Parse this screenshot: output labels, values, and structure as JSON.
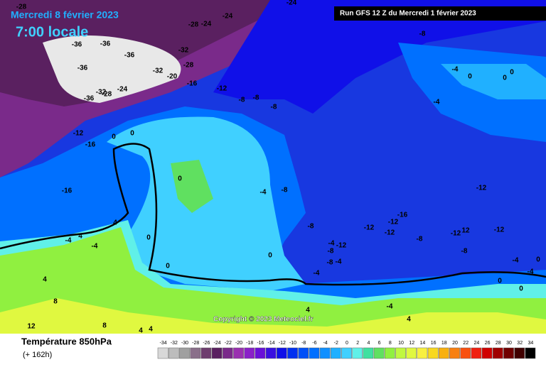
{
  "header": {
    "date": "Mercredi 8 février 2023",
    "time": "7:00 locale",
    "run": "Run GFS 12 Z du Mercredi 1 février 2023"
  },
  "footer": {
    "parameter": "Température 850hPa",
    "lead": "(+ 162h)",
    "copyright": "Copyright © 2023 Meteociel.fr"
  },
  "map": {
    "contour_labels": [
      -28,
      -24,
      -24,
      -28,
      -24,
      -36,
      -36,
      -36,
      -32,
      -36,
      -32,
      -28,
      -20,
      -36,
      -32,
      -28,
      -24,
      -16,
      -12,
      -8,
      -8,
      -8,
      -8,
      -4,
      0,
      0,
      0,
      -4,
      -12,
      -16,
      0,
      0,
      0,
      -4,
      -8,
      -12,
      -16,
      4,
      -4,
      4,
      -4,
      0,
      -8,
      -16,
      -12,
      -12,
      -12,
      -8,
      -12,
      12,
      -12,
      -4,
      -12,
      -8,
      0,
      -8,
      -4,
      -8,
      -4,
      0,
      -4,
      -4,
      0,
      4,
      8,
      12,
      8,
      4,
      4,
      4,
      -4,
      4,
      0,
      0
    ]
  },
  "legend": {
    "values": [
      -34,
      -32,
      -30,
      -28,
      -26,
      -24,
      -22,
      -20,
      -18,
      -16,
      -14,
      -12,
      -10,
      -8,
      -6,
      -4,
      -2,
      0,
      2,
      4,
      6,
      8,
      10,
      12,
      14,
      16,
      18,
      20,
      22,
      24,
      26,
      28,
      30,
      32,
      34
    ],
    "colors": [
      "#d8d8d8",
      "#bcbcbc",
      "#a0a0a0",
      "#8a6f8a",
      "#6e3e6e",
      "#5a2060",
      "#7a2a8a",
      "#9a30b0",
      "#8a20c8",
      "#6a10d8",
      "#3a10e0",
      "#1010e8",
      "#0030f0",
      "#0050f8",
      "#0070ff",
      "#1090ff",
      "#20b0ff",
      "#40d0ff",
      "#60f0e8",
      "#40e0a0",
      "#60e060",
      "#90f040",
      "#c0f840",
      "#e0f840",
      "#f8f040",
      "#f8d820",
      "#f8b010",
      "#f88010",
      "#f85010",
      "#f02010",
      "#d00000",
      "#a00000",
      "#700000",
      "#400000",
      "#000000"
    ]
  }
}
